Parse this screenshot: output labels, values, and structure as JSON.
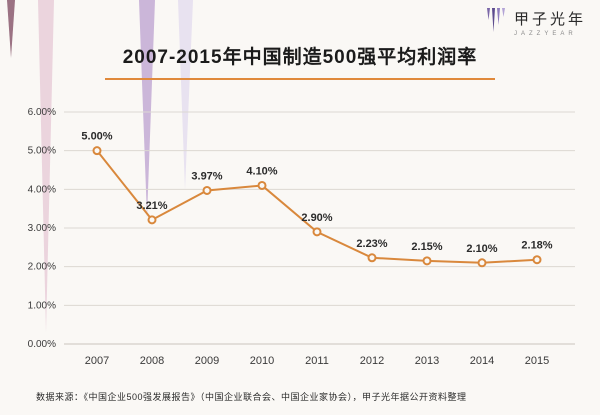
{
  "page": {
    "background": "#FAF8F5",
    "accent_color": "#E0893B"
  },
  "header": {
    "title": "2007-2015年中国制造500强平均利润率"
  },
  "logo": {
    "name": "甲子光年",
    "subtitle": "JAZZYEAR"
  },
  "footer": {
    "source": "数据来源：《中国企业500强发展报告》（中国企业联合会、中国企业家协会），甲子光年据公开资料整理"
  },
  "chart_data": {
    "type": "line",
    "title": "2007-2015年中国制造500强平均利润率",
    "categories": [
      "2007",
      "2008",
      "2009",
      "2010",
      "2011",
      "2012",
      "2013",
      "2014",
      "2015"
    ],
    "values": [
      5.0,
      3.21,
      3.97,
      4.1,
      2.9,
      2.23,
      2.15,
      2.1,
      2.18
    ],
    "data_labels": [
      "5.00%",
      "3.21%",
      "3.97%",
      "4.10%",
      "2.90%",
      "2.23%",
      "2.15%",
      "2.10%",
      "2.18%"
    ],
    "xlabel": "",
    "ylabel": "",
    "ylim": [
      0,
      6
    ],
    "y_ticks": [
      "0.00%",
      "1.00%",
      "2.00%",
      "3.00%",
      "4.00%",
      "5.00%",
      "6.00%"
    ],
    "grid": true,
    "legend": "none",
    "line_color": "#D9883C",
    "marker_fill": "#FAF8F5",
    "grid_color": "#DCD8D2",
    "label_color": "#2b2b2b",
    "tick_color": "#3a3a3a"
  }
}
